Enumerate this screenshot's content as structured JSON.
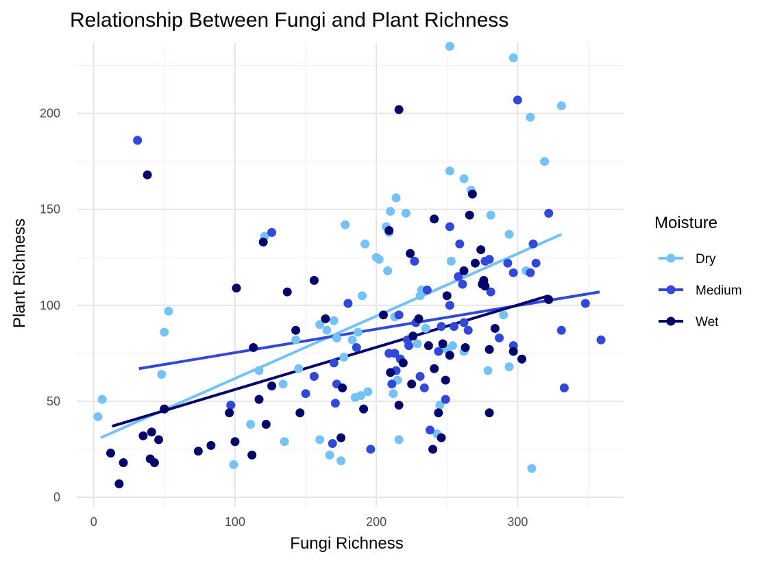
{
  "chart_data": {
    "type": "scatter",
    "title": "Relationship Between Fungi and Plant Richness",
    "xlabel": "Fungi Richness",
    "ylabel": "Plant Richness",
    "xlim": [
      -12,
      375
    ],
    "ylim": [
      -5,
      237
    ],
    "x_ticks": [
      0,
      100,
      200,
      300
    ],
    "y_ticks": [
      0,
      50,
      100,
      150,
      200
    ],
    "x_tick_labels": [
      "0",
      "100",
      "200",
      "300"
    ],
    "y_tick_labels": [
      "0",
      "50",
      "100",
      "150",
      "200"
    ],
    "grid": true,
    "legend": {
      "title": "Moisture",
      "position": "right"
    },
    "series": [
      {
        "name": "Dry",
        "color": "#74c2f8",
        "trend": {
          "x": [
            5,
            331
          ],
          "y": [
            31,
            137
          ]
        },
        "points": [
          [
            3,
            42
          ],
          [
            6,
            51
          ],
          [
            48,
            64
          ],
          [
            50,
            86
          ],
          [
            53,
            97
          ],
          [
            99,
            17
          ],
          [
            111,
            38
          ],
          [
            117,
            66
          ],
          [
            121,
            136
          ],
          [
            134,
            59
          ],
          [
            135,
            29
          ],
          [
            143,
            82
          ],
          [
            145,
            67
          ],
          [
            160,
            90
          ],
          [
            160,
            30
          ],
          [
            165,
            87
          ],
          [
            167,
            22
          ],
          [
            170,
            92
          ],
          [
            172,
            83
          ],
          [
            175,
            19
          ],
          [
            177,
            73
          ],
          [
            178,
            142
          ],
          [
            183,
            82
          ],
          [
            185,
            52
          ],
          [
            187,
            86
          ],
          [
            189,
            53
          ],
          [
            190,
            105
          ],
          [
            192,
            132
          ],
          [
            194,
            55
          ],
          [
            200,
            125
          ],
          [
            202,
            124
          ],
          [
            207,
            141
          ],
          [
            208,
            118
          ],
          [
            209,
            138
          ],
          [
            210,
            149
          ],
          [
            212,
            54
          ],
          [
            213,
            94
          ],
          [
            214,
            156
          ],
          [
            215,
            61
          ],
          [
            216,
            30
          ],
          [
            221,
            148
          ],
          [
            229,
            80
          ],
          [
            231,
            105
          ],
          [
            232,
            108
          ],
          [
            235,
            88
          ],
          [
            243,
            33
          ],
          [
            245,
            48
          ],
          [
            250,
            77
          ],
          [
            252,
            235
          ],
          [
            252,
            170
          ],
          [
            253,
            123
          ],
          [
            254,
            79
          ],
          [
            262,
            166
          ],
          [
            262,
            76
          ],
          [
            267,
            160
          ],
          [
            279,
            66
          ],
          [
            281,
            147
          ],
          [
            290,
            95
          ],
          [
            294,
            137
          ],
          [
            294,
            68
          ],
          [
            297,
            229
          ],
          [
            306,
            118
          ],
          [
            309,
            198
          ],
          [
            310,
            15
          ],
          [
            319,
            175
          ],
          [
            331,
            204
          ]
        ]
      },
      {
        "name": "Medium",
        "color": "#3149d8",
        "trend": {
          "x": [
            32,
            358
          ],
          "y": [
            67,
            107
          ]
        },
        "points": [
          [
            31,
            186
          ],
          [
            97,
            48
          ],
          [
            126,
            138
          ],
          [
            150,
            54
          ],
          [
            156,
            63
          ],
          [
            169,
            28
          ],
          [
            170,
            70
          ],
          [
            171,
            49
          ],
          [
            172,
            59
          ],
          [
            180,
            101
          ],
          [
            186,
            78
          ],
          [
            196,
            25
          ],
          [
            209,
            75
          ],
          [
            211,
            59
          ],
          [
            213,
            75
          ],
          [
            214,
            66
          ],
          [
            216,
            95
          ],
          [
            217,
            72
          ],
          [
            222,
            82
          ],
          [
            223,
            79
          ],
          [
            227,
            123
          ],
          [
            228,
            91
          ],
          [
            231,
            63
          ],
          [
            234,
            57
          ],
          [
            236,
            108
          ],
          [
            238,
            35
          ],
          [
            244,
            76
          ],
          [
            246,
            89
          ],
          [
            249,
            51
          ],
          [
            252,
            141
          ],
          [
            252,
            100
          ],
          [
            255,
            89
          ],
          [
            258,
            115
          ],
          [
            259,
            132
          ],
          [
            261,
            111
          ],
          [
            262,
            91
          ],
          [
            265,
            87
          ],
          [
            277,
            123
          ],
          [
            280,
            124
          ],
          [
            281,
            107
          ],
          [
            287,
            83
          ],
          [
            293,
            122
          ],
          [
            297,
            79
          ],
          [
            297,
            117
          ],
          [
            300,
            207
          ],
          [
            309,
            117
          ],
          [
            311,
            132
          ],
          [
            313,
            122
          ],
          [
            322,
            148
          ],
          [
            331,
            87
          ],
          [
            333,
            57
          ],
          [
            348,
            101
          ],
          [
            359,
            82
          ]
        ]
      },
      {
        "name": "Wet",
        "color": "#03046a",
        "trend": {
          "x": [
            13,
            322
          ],
          "y": [
            37,
            105
          ]
        },
        "points": [
          [
            12,
            23
          ],
          [
            18,
            7
          ],
          [
            21,
            18
          ],
          [
            35,
            32
          ],
          [
            38,
            168
          ],
          [
            40,
            20
          ],
          [
            41,
            34
          ],
          [
            43,
            18
          ],
          [
            46,
            30
          ],
          [
            50,
            46
          ],
          [
            74,
            24
          ],
          [
            83,
            27
          ],
          [
            96,
            44
          ],
          [
            100,
            29
          ],
          [
            101,
            109
          ],
          [
            112,
            22
          ],
          [
            113,
            78
          ],
          [
            117,
            51
          ],
          [
            120,
            133
          ],
          [
            122,
            38
          ],
          [
            126,
            58
          ],
          [
            137,
            107
          ],
          [
            143,
            87
          ],
          [
            146,
            44
          ],
          [
            156,
            113
          ],
          [
            164,
            93
          ],
          [
            175,
            31
          ],
          [
            176,
            57
          ],
          [
            191,
            46
          ],
          [
            205,
            95
          ],
          [
            209,
            139
          ],
          [
            210,
            65
          ],
          [
            216,
            202
          ],
          [
            216,
            48
          ],
          [
            219,
            70
          ],
          [
            224,
            127
          ],
          [
            225,
            59
          ],
          [
            226,
            84
          ],
          [
            230,
            93
          ],
          [
            237,
            79
          ],
          [
            240,
            25
          ],
          [
            241,
            145
          ],
          [
            241,
            67
          ],
          [
            244,
            44
          ],
          [
            246,
            31
          ],
          [
            247,
            80
          ],
          [
            249,
            61
          ],
          [
            250,
            105
          ],
          [
            252,
            74
          ],
          [
            262,
            118
          ],
          [
            263,
            78
          ],
          [
            266,
            147
          ],
          [
            268,
            158
          ],
          [
            270,
            122
          ],
          [
            274,
            129
          ],
          [
            275,
            111
          ],
          [
            276,
            113
          ],
          [
            277,
            110
          ],
          [
            280,
            44
          ],
          [
            280,
            77
          ],
          [
            284,
            88
          ],
          [
            297,
            76
          ],
          [
            303,
            72
          ],
          [
            322,
            103
          ]
        ]
      }
    ]
  }
}
